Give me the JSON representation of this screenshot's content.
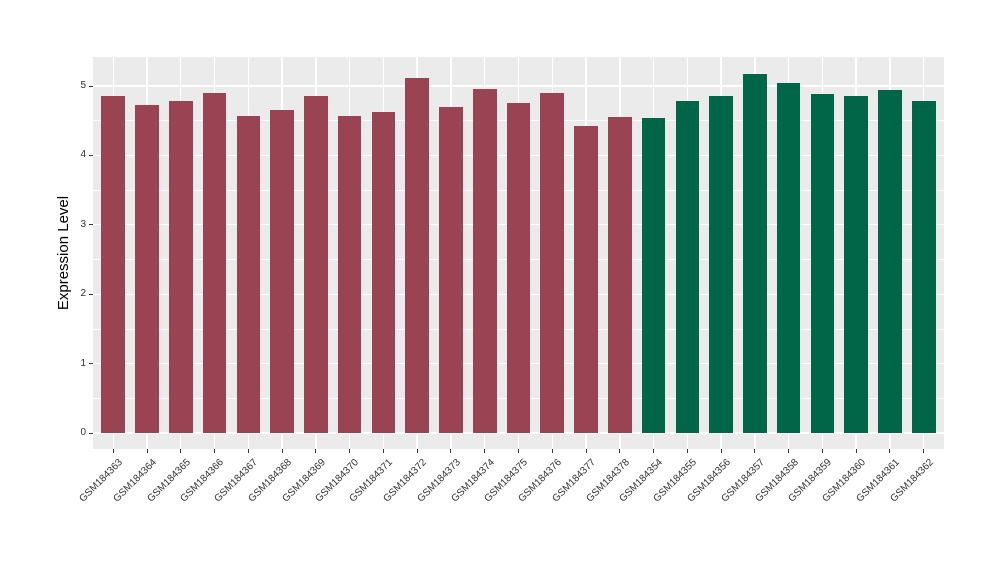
{
  "chart_data": {
    "type": "bar",
    "title": "",
    "xlabel": "",
    "ylabel": "Expression Level",
    "y_ticks": [
      0,
      1,
      2,
      3,
      4,
      5
    ],
    "y_minor_ticks": [
      0.5,
      1.5,
      2.5,
      3.5,
      4.5
    ],
    "ylim": [
      -0.23,
      5.42
    ],
    "grid": "on",
    "legend_position": "none",
    "panel_bg_color": "#EBEBEB",
    "grid_color": "#FFFFFF",
    "tick_label_color": "#303030",
    "categories": [
      "GSM184363",
      "GSM184364",
      "GSM184365",
      "GSM184366",
      "GSM184367",
      "GSM184368",
      "GSM184369",
      "GSM184370",
      "GSM184371",
      "GSM184372",
      "GSM184373",
      "GSM184374",
      "GSM184375",
      "GSM184376",
      "GSM184377",
      "GSM184378",
      "GSM184354",
      "GSM184355",
      "GSM184356",
      "GSM184357",
      "GSM184358",
      "GSM184359",
      "GSM184360",
      "GSM184361",
      "GSM184362"
    ],
    "values": [
      4.85,
      4.72,
      4.78,
      4.9,
      4.57,
      4.65,
      4.85,
      4.57,
      4.62,
      5.12,
      4.7,
      4.96,
      4.75,
      4.9,
      4.43,
      4.56,
      4.54,
      4.79,
      4.86,
      5.17,
      5.04,
      4.88,
      4.86,
      4.94,
      4.78
    ],
    "bar_colors": [
      "#9A4453",
      "#9A4453",
      "#9A4453",
      "#9A4453",
      "#9A4453",
      "#9A4453",
      "#9A4453",
      "#9A4453",
      "#9A4453",
      "#9A4453",
      "#9A4453",
      "#9A4453",
      "#9A4453",
      "#9A4453",
      "#9A4453",
      "#9A4453",
      "#006647",
      "#006647",
      "#006647",
      "#006647",
      "#006647",
      "#006647",
      "#006647",
      "#006647",
      "#006647"
    ]
  }
}
